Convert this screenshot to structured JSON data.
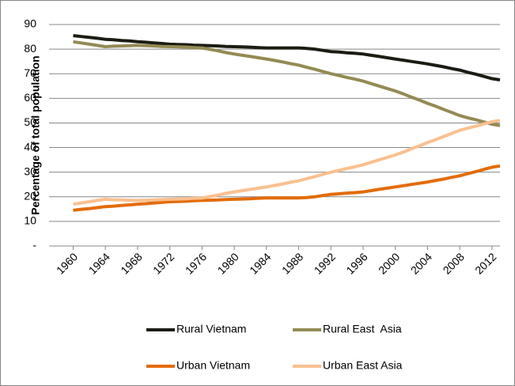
{
  "chart_data": {
    "type": "line",
    "ylabel": "Percentage of total population",
    "x": [
      1960,
      1961,
      1962,
      1963,
      1964,
      1965,
      1966,
      1967,
      1968,
      1969,
      1970,
      1971,
      1972,
      1973,
      1974,
      1975,
      1976,
      1977,
      1978,
      1979,
      1980,
      1981,
      1982,
      1983,
      1984,
      1985,
      1986,
      1987,
      1988,
      1989,
      1990,
      1991,
      1992,
      1993,
      1994,
      1995,
      1996,
      1997,
      1998,
      1999,
      2000,
      2001,
      2002,
      2003,
      2004,
      2005,
      2006,
      2007,
      2008,
      2009,
      2010,
      2011,
      2012,
      2013
    ],
    "xlim": [
      1957,
      2013
    ],
    "xticks": [
      1960,
      1964,
      1968,
      1972,
      1976,
      1980,
      1984,
      1988,
      1992,
      1996,
      2000,
      2004,
      2008,
      2012
    ],
    "ylim": [
      0,
      90
    ],
    "yticks": [
      {
        "value": 0,
        "label": "-"
      },
      10,
      20,
      30,
      40,
      50,
      60,
      70,
      80,
      90
    ],
    "grid": true,
    "legend": "bottom",
    "series": [
      {
        "name": "Rural Vietnam",
        "color": "#1c1c14",
        "values": [
          85.5,
          85.1,
          84.8,
          84.4,
          84,
          83.8,
          83.5,
          83.3,
          83,
          82.8,
          82.5,
          82.3,
          82,
          81.9,
          81.8,
          81.6,
          81.5,
          81.4,
          81.3,
          81.1,
          81,
          80.9,
          80.8,
          80.6,
          80.5,
          80.5,
          80.5,
          80.5,
          80.5,
          80.3,
          80,
          79.5,
          79,
          78.8,
          78.5,
          78.3,
          78,
          77.5,
          77,
          76.5,
          76,
          75.5,
          75,
          74.5,
          74,
          73.4,
          72.8,
          72.1,
          71.5,
          70.6,
          69.8,
          68.9,
          68,
          67.5
        ]
      },
      {
        "name": "Rural East  Asia",
        "color": "#948a54",
        "values": [
          83,
          82.5,
          82,
          81.5,
          81,
          81.2,
          81.3,
          81.4,
          81.5,
          81.4,
          81.3,
          81.1,
          81,
          80.9,
          80.8,
          80.6,
          80.5,
          79.9,
          79.3,
          78.6,
          78,
          77.5,
          77,
          76.5,
          76,
          75.4,
          74.8,
          74.1,
          73.5,
          72.6,
          71.8,
          70.9,
          70,
          69.3,
          68.5,
          67.8,
          67,
          66,
          65,
          64,
          63,
          61.8,
          60.5,
          59.3,
          58,
          56.8,
          55.5,
          54.3,
          53,
          52.1,
          51.3,
          50.4,
          49.5,
          49
        ]
      },
      {
        "name": "Urban Vietnam",
        "color": "#e36c09",
        "values": [
          14.5,
          14.9,
          15.2,
          15.6,
          16,
          16.2,
          16.5,
          16.7,
          17,
          17.2,
          17.5,
          17.7,
          18,
          18.1,
          18.2,
          18.4,
          18.5,
          18.6,
          18.7,
          18.9,
          19,
          19.1,
          19.2,
          19.4,
          19.5,
          19.5,
          19.5,
          19.5,
          19.5,
          19.7,
          20,
          20.5,
          21,
          21.2,
          21.5,
          21.7,
          22,
          22.5,
          23,
          23.5,
          24,
          24.5,
          25,
          25.5,
          26,
          26.6,
          27.2,
          27.9,
          28.5,
          29.4,
          30.2,
          31.1,
          32,
          32.5
        ]
      },
      {
        "name": "Urban East Asia",
        "color": "#fac090",
        "values": [
          17,
          17.5,
          18,
          18.5,
          19,
          18.8,
          18.7,
          18.6,
          18.5,
          18.6,
          18.7,
          18.9,
          19,
          19.1,
          19.2,
          19.4,
          19.5,
          20.1,
          20.7,
          21.4,
          22,
          22.5,
          23,
          23.5,
          24,
          24.6,
          25.2,
          25.9,
          26.5,
          27.4,
          28.2,
          29.1,
          30,
          30.7,
          31.5,
          32.2,
          33,
          34,
          35,
          36,
          37,
          38.2,
          39.5,
          40.7,
          42,
          43.2,
          44.5,
          45.7,
          47,
          47.9,
          48.7,
          49.6,
          50.5,
          51
        ]
      }
    ]
  }
}
